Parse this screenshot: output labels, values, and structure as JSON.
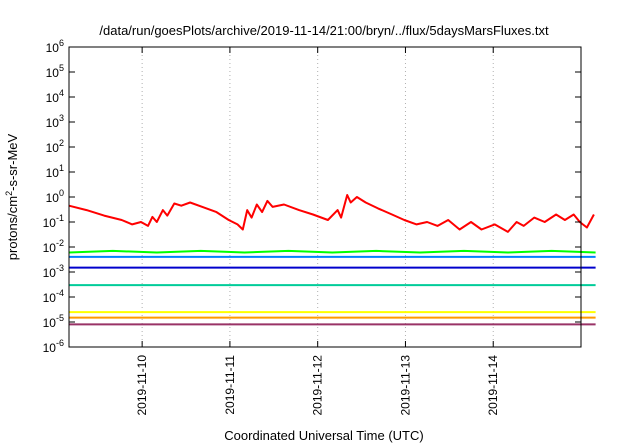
{
  "chart_data": {
    "type": "line",
    "title": "/data/run/goesPlots/archive/2019-11-14/21:00/bryn/../flux/5daysMarsFluxes.txt",
    "xlabel": "Coordinated Universal Time (UTC)",
    "ylabel": {
      "base": "protons/cm",
      "sup": "2",
      "rest": "-s-sr-MeV"
    },
    "yscale": "log",
    "ylim": [
      1e-06,
      1000000.0
    ],
    "yticks": [
      {
        "value": 1e-06,
        "exp": "-6"
      },
      {
        "value": 1e-05,
        "exp": "-5"
      },
      {
        "value": 0.0001,
        "exp": "-4"
      },
      {
        "value": 0.001,
        "exp": "-3"
      },
      {
        "value": 0.01,
        "exp": "-2"
      },
      {
        "value": 0.1,
        "exp": "-1"
      },
      {
        "value": 1,
        "exp": "0"
      },
      {
        "value": 10,
        "exp": "1"
      },
      {
        "value": 100,
        "exp": "2"
      },
      {
        "value": 1000,
        "exp": "3"
      },
      {
        "value": 10000,
        "exp": "4"
      },
      {
        "value": 100000,
        "exp": "5"
      },
      {
        "value": 1000000,
        "exp": "6"
      }
    ],
    "xlim": [
      "2019-11-09T04:00",
      "2019-11-15T00:00"
    ],
    "xticks": [
      "2019-11-10",
      "2019-11-11",
      "2019-11-12",
      "2019-11-13",
      "2019-11-14"
    ],
    "grid": "vertical-dotted",
    "legend": "none",
    "colors": {
      "s1": "#ff0000",
      "s2": "#00ff00",
      "s3": "#0080ff",
      "s4": "#0000cc",
      "s5": "#00cc99",
      "s6": "#ffff00",
      "s7": "#ff9900",
      "s8": "#993366"
    },
    "series": [
      {
        "color_key": "s1",
        "x": [
          0,
          0.2,
          0.4,
          0.6,
          0.72,
          0.82,
          0.9,
          0.95,
          1.0,
          1.07,
          1.12,
          1.2,
          1.28,
          1.38,
          1.52,
          1.68,
          1.82,
          1.92,
          1.98,
          2.03,
          2.08,
          2.14,
          2.2,
          2.26,
          2.32,
          2.45,
          2.62,
          2.78,
          2.95,
          3.06,
          3.1,
          3.17,
          3.21,
          3.28,
          3.38,
          3.52,
          3.68,
          3.82,
          3.96,
          4.08,
          4.2,
          4.32,
          4.45,
          4.58,
          4.7,
          4.85,
          5.0,
          5.1,
          5.18,
          5.3,
          5.42,
          5.55,
          5.65,
          5.75,
          5.82,
          5.9,
          5.98
        ],
        "y": [
          0.45,
          0.3,
          0.18,
          0.12,
          0.08,
          0.1,
          0.07,
          0.16,
          0.1,
          0.3,
          0.18,
          0.55,
          0.45,
          0.6,
          0.4,
          0.25,
          0.12,
          0.08,
          0.05,
          0.3,
          0.15,
          0.5,
          0.25,
          0.7,
          0.4,
          0.5,
          0.3,
          0.2,
          0.12,
          0.3,
          0.15,
          1.2,
          0.6,
          1.0,
          0.6,
          0.35,
          0.2,
          0.12,
          0.08,
          0.1,
          0.07,
          0.12,
          0.05,
          0.1,
          0.05,
          0.08,
          0.04,
          0.1,
          0.07,
          0.15,
          0.1,
          0.2,
          0.12,
          0.2,
          0.1,
          0.06,
          0.2
        ]
      },
      {
        "color_key": "s2",
        "x": [
          0,
          0.5,
          1,
          1.5,
          2,
          2.5,
          3,
          3.5,
          4,
          4.5,
          5,
          5.5,
          6
        ],
        "y": [
          0.006,
          0.007,
          0.006,
          0.007,
          0.006,
          0.007,
          0.006,
          0.007,
          0.006,
          0.007,
          0.006,
          0.007,
          0.006
        ]
      },
      {
        "color_key": "s3",
        "x": [
          0,
          0.5,
          1,
          1.5,
          2,
          2.5,
          3,
          3.5,
          4,
          4.5,
          5,
          5.5,
          6
        ],
        "y": [
          0.004,
          0.004,
          0.004,
          0.004,
          0.004,
          0.004,
          0.004,
          0.004,
          0.004,
          0.004,
          0.004,
          0.004,
          0.004
        ]
      },
      {
        "color_key": "s4",
        "x": [
          0,
          0.5,
          1,
          1.5,
          2,
          2.5,
          3,
          3.5,
          4,
          4.5,
          5,
          5.5,
          6
        ],
        "y": [
          0.0015,
          0.0015,
          0.0015,
          0.0015,
          0.0015,
          0.0015,
          0.0015,
          0.0015,
          0.0015,
          0.0015,
          0.0015,
          0.0015,
          0.0015
        ]
      },
      {
        "color_key": "s5",
        "x": [
          0,
          0.5,
          1,
          1.5,
          2,
          2.5,
          3,
          3.5,
          4,
          4.5,
          5,
          5.5,
          6
        ],
        "y": [
          0.0003,
          0.0003,
          0.0003,
          0.0003,
          0.0003,
          0.0003,
          0.0003,
          0.0003,
          0.0003,
          0.0003,
          0.0003,
          0.0003,
          0.0003
        ]
      },
      {
        "color_key": "s6",
        "x": [
          0,
          0.5,
          1,
          1.5,
          2,
          2.5,
          3,
          3.5,
          4,
          4.5,
          5,
          5.5,
          6
        ],
        "y": [
          2.5e-05,
          2.5e-05,
          2.5e-05,
          2.5e-05,
          2.5e-05,
          2.5e-05,
          2.5e-05,
          2.5e-05,
          2.5e-05,
          2.5e-05,
          2.5e-05,
          2.5e-05,
          2.5e-05
        ]
      },
      {
        "color_key": "s7",
        "x": [
          0,
          0.5,
          1,
          1.5,
          2,
          2.5,
          3,
          3.5,
          4,
          4.5,
          5,
          5.5,
          6
        ],
        "y": [
          1.5e-05,
          1.5e-05,
          1.5e-05,
          1.5e-05,
          1.5e-05,
          1.5e-05,
          1.5e-05,
          1.5e-05,
          1.5e-05,
          1.5e-05,
          1.5e-05,
          1.5e-05,
          1.5e-05
        ]
      },
      {
        "color_key": "s8",
        "x": [
          0,
          0.5,
          1,
          1.5,
          2,
          2.5,
          3,
          3.5,
          4,
          4.5,
          5,
          5.5,
          6
        ],
        "y": [
          8e-06,
          8e-06,
          8e-06,
          8e-06,
          8e-06,
          8e-06,
          8e-06,
          8e-06,
          8e-06,
          8e-06,
          8e-06,
          8e-06,
          8e-06
        ]
      }
    ]
  }
}
